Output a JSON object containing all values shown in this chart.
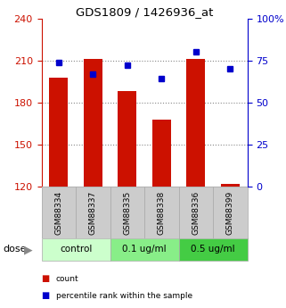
{
  "title": "GDS1809 / 1426936_at",
  "samples": [
    "GSM88334",
    "GSM88337",
    "GSM88335",
    "GSM88338",
    "GSM88336",
    "GSM88399"
  ],
  "bar_values": [
    198,
    211,
    188,
    168,
    211,
    122
  ],
  "percentile_values": [
    74,
    67,
    72,
    64,
    80,
    70
  ],
  "bar_baseline": 120,
  "bar_color": "#cc1100",
  "dot_color": "#0000cc",
  "left_ylim": [
    120,
    240
  ],
  "right_ylim": [
    0,
    100
  ],
  "left_yticks": [
    120,
    150,
    180,
    210,
    240
  ],
  "right_yticks": [
    0,
    25,
    50,
    75,
    100
  ],
  "right_yticklabels": [
    "0",
    "25",
    "50",
    "75",
    "100%"
  ],
  "dose_groups": [
    {
      "label": "control",
      "start": 0,
      "end": 2,
      "color": "#ccffcc"
    },
    {
      "label": "0.1 ug/ml",
      "start": 2,
      "end": 4,
      "color": "#88ee88"
    },
    {
      "label": "0.5 ug/ml",
      "start": 4,
      "end": 6,
      "color": "#44cc44"
    }
  ],
  "legend_items": [
    {
      "label": "count",
      "color": "#cc1100"
    },
    {
      "label": "percentile rank within the sample",
      "color": "#0000cc"
    }
  ],
  "xlabel_dose": "dose",
  "grid_color": "#888888",
  "background_color": "#ffffff",
  "tick_color_left": "#cc1100",
  "tick_color_right": "#0000cc"
}
